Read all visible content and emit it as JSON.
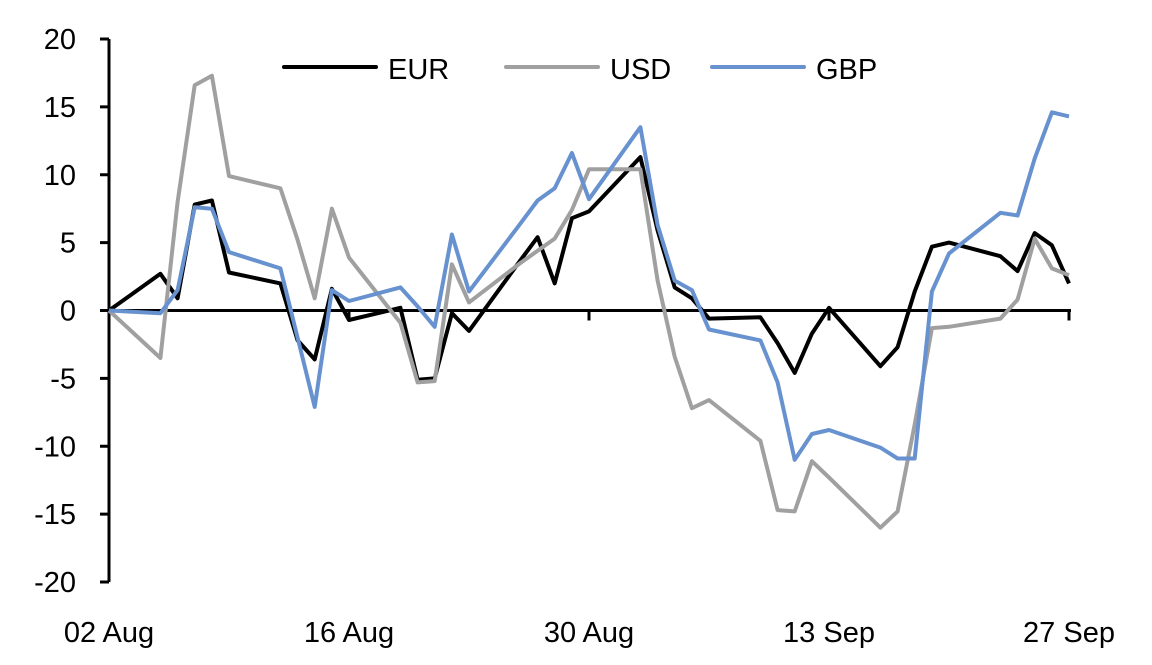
{
  "chart_data": {
    "type": "line",
    "title": "",
    "xlabel": "",
    "ylabel": "",
    "ylim": [
      -20,
      20
    ],
    "yticks": [
      "20",
      "15",
      "10",
      "5",
      "0",
      "-5",
      "-10",
      "-15",
      "-20"
    ],
    "xticks": [
      "02 Aug",
      "16 Aug",
      "30 Aug",
      "13 Sep",
      "27 Sep"
    ],
    "grid": false,
    "legend": "top",
    "x": [
      "02 Aug",
      "05 Aug",
      "06 Aug",
      "07 Aug",
      "08 Aug",
      "09 Aug",
      "12 Aug",
      "13 Aug",
      "14 Aug",
      "15 Aug",
      "16 Aug",
      "19 Aug",
      "20 Aug",
      "21 Aug",
      "22 Aug",
      "23 Aug",
      "26 Aug",
      "27 Aug",
      "28 Aug",
      "29 Aug",
      "30 Aug",
      "02 Sep",
      "03 Sep",
      "04 Sep",
      "05 Sep",
      "06 Sep",
      "09 Sep",
      "10 Sep",
      "11 Sep",
      "12 Sep",
      "13 Sep",
      "16 Sep",
      "17 Sep",
      "18 Sep",
      "19 Sep",
      "20 Sep",
      "23 Sep",
      "24 Sep",
      "25 Sep",
      "26 Sep",
      "27 Sep"
    ],
    "series": [
      {
        "name": "EUR",
        "color": "#000000",
        "values": [
          0,
          2.7,
          0.9,
          7.8,
          8.1,
          2.8,
          2.0,
          -2.2,
          -3.6,
          1.6,
          -0.7,
          0.2,
          -5.1,
          -5.0,
          -0.2,
          -1.5,
          3.7,
          5.4,
          2.0,
          6.8,
          7.3,
          11.3,
          5.9,
          1.7,
          0.9,
          -0.6,
          -0.5,
          -2.4,
          -4.6,
          -1.7,
          0.2,
          -4.1,
          -2.7,
          1.4,
          4.7,
          5.0,
          4.0,
          2.9,
          5.7,
          4.8,
          2.0
        ]
      },
      {
        "name": "USD",
        "color": "#A0A0A0",
        "values": [
          0,
          -3.5,
          8.0,
          16.6,
          17.3,
          9.9,
          9.0,
          5.2,
          0.9,
          7.5,
          3.9,
          -0.9,
          -5.3,
          -5.2,
          3.4,
          0.6,
          3.5,
          4.4,
          5.3,
          7.4,
          10.4,
          10.4,
          2.2,
          -3.4,
          -7.2,
          -6.6,
          -9.6,
          -14.7,
          -14.8,
          -11.1,
          -12.3,
          -16.0,
          -14.8,
          -8.4,
          -1.3,
          -1.2,
          -0.6,
          0.8,
          5.3,
          3.1,
          2.6
        ]
      },
      {
        "name": "GBP",
        "color": "#6792CF",
        "values": [
          0,
          -0.2,
          1.5,
          7.6,
          7.5,
          4.3,
          3.1,
          -2.0,
          -7.1,
          1.5,
          0.7,
          1.7,
          0.3,
          -1.2,
          5.6,
          1.4,
          6.4,
          8.1,
          9.0,
          11.6,
          8.2,
          13.5,
          6.3,
          2.2,
          1.5,
          -1.4,
          -2.2,
          -5.3,
          -11.0,
          -9.1,
          -8.8,
          -10.1,
          -10.9,
          -10.9,
          1.4,
          4.2,
          7.2,
          7.0,
          11.2,
          14.6,
          14.3
        ]
      }
    ]
  }
}
